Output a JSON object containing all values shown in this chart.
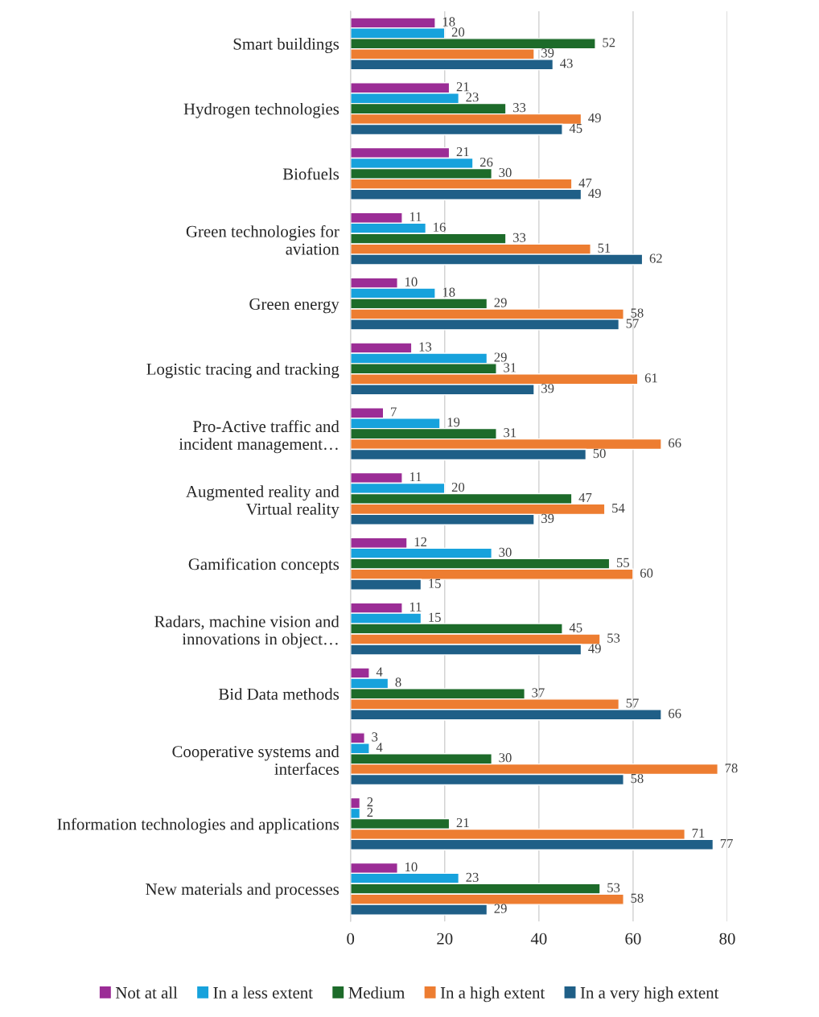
{
  "chart_data": {
    "type": "bar",
    "orientation": "horizontal",
    "categories": [
      "Smart buildings",
      "Hydrogen technologies",
      "Biofuels",
      "Green technologies for\naviation",
      "Green energy",
      "Logistic tracing and tracking",
      "Pro-Active traffic and\nincident management…",
      "Augmented reality and\nVirtual reality",
      "Gamification concepts",
      "Radars, machine vision and\ninnovations in object…",
      "Bid Data methods",
      "Cooperative systems and\ninterfaces",
      "Information technologies and applications",
      "New materials and processes"
    ],
    "series": [
      {
        "name": "Not at all",
        "color": "#9b2d96",
        "values": [
          18,
          21,
          21,
          11,
          10,
          13,
          7,
          11,
          12,
          11,
          4,
          3,
          2,
          10
        ]
      },
      {
        "name": "In a less extent",
        "color": "#17a2dc",
        "values": [
          20,
          23,
          26,
          16,
          18,
          29,
          19,
          20,
          30,
          15,
          8,
          4,
          2,
          23
        ]
      },
      {
        "name": "Medium",
        "color": "#1d6b2a",
        "values": [
          52,
          33,
          30,
          33,
          29,
          31,
          31,
          47,
          55,
          45,
          37,
          30,
          21,
          53
        ]
      },
      {
        "name": "In a high extent",
        "color": "#ed7d31",
        "values": [
          39,
          49,
          47,
          51,
          58,
          61,
          66,
          54,
          60,
          53,
          57,
          78,
          71,
          58
        ]
      },
      {
        "name": "In a very high extent",
        "color": "#1f5f87",
        "values": [
          43,
          45,
          49,
          62,
          57,
          39,
          50,
          39,
          15,
          49,
          66,
          58,
          77,
          29
        ]
      }
    ],
    "xlim": [
      0,
      80
    ],
    "xticks": [
      0,
      20,
      40,
      60,
      80
    ],
    "grid": "x",
    "legend": "bottom",
    "data_labels": true
  }
}
